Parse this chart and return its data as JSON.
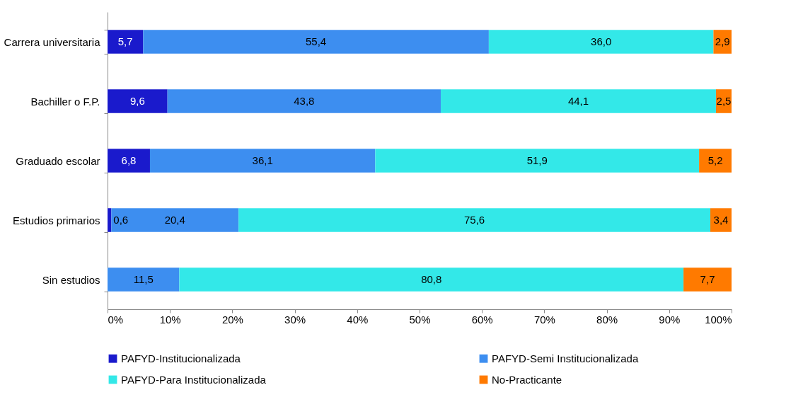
{
  "chart_data": {
    "type": "bar",
    "orientation": "horizontal",
    "stacked": true,
    "categories": [
      "Carrera universitaria",
      "Bachiller o F.P.",
      "Graduado escolar",
      "Estudios primarios",
      "Sin estudios"
    ],
    "series": [
      {
        "name": "PAFYD-Institucionalizada",
        "color": "#1a1acc",
        "values": [
          5.7,
          9.6,
          6.8,
          0.6,
          null
        ],
        "value_labels": [
          "5,7",
          "9,6",
          "6,8",
          "0,6",
          null
        ]
      },
      {
        "name": "PAFYD-Semi Institucionalizada",
        "color": "#3d8ef0",
        "values": [
          55.4,
          43.8,
          36.1,
          20.4,
          11.5
        ],
        "value_labels": [
          "55,4",
          "43,8",
          "36,1",
          "20,4",
          "11,5"
        ]
      },
      {
        "name": "PAFYD-Para Institucionalizada",
        "color": "#33e8e8",
        "values": [
          36.0,
          44.1,
          51.9,
          75.6,
          80.8
        ],
        "value_labels": [
          "36,0",
          "44,1",
          "51,9",
          "75,6",
          "80,8"
        ]
      },
      {
        "name": "No-Practicante",
        "color": "#ff7a00",
        "values": [
          2.9,
          2.5,
          5.2,
          3.4,
          7.7
        ],
        "value_labels": [
          "2,9",
          "2,5",
          "5,2",
          "3,4",
          "7,7"
        ]
      }
    ],
    "xlim": [
      0,
      100
    ],
    "xticks": [
      {
        "value": 0,
        "label": "0%"
      },
      {
        "value": 10,
        "label": "10%"
      },
      {
        "value": 20,
        "label": "20%"
      },
      {
        "value": 30,
        "label": "30%"
      },
      {
        "value": 40,
        "label": "40%"
      },
      {
        "value": 50,
        "label": "50%"
      },
      {
        "value": 60,
        "label": "60%"
      },
      {
        "value": 70,
        "label": "70%"
      },
      {
        "value": 80,
        "label": "80%"
      },
      {
        "value": 90,
        "label": "90%"
      },
      {
        "value": 100,
        "label": "100%"
      }
    ],
    "legend": "bottom"
  }
}
